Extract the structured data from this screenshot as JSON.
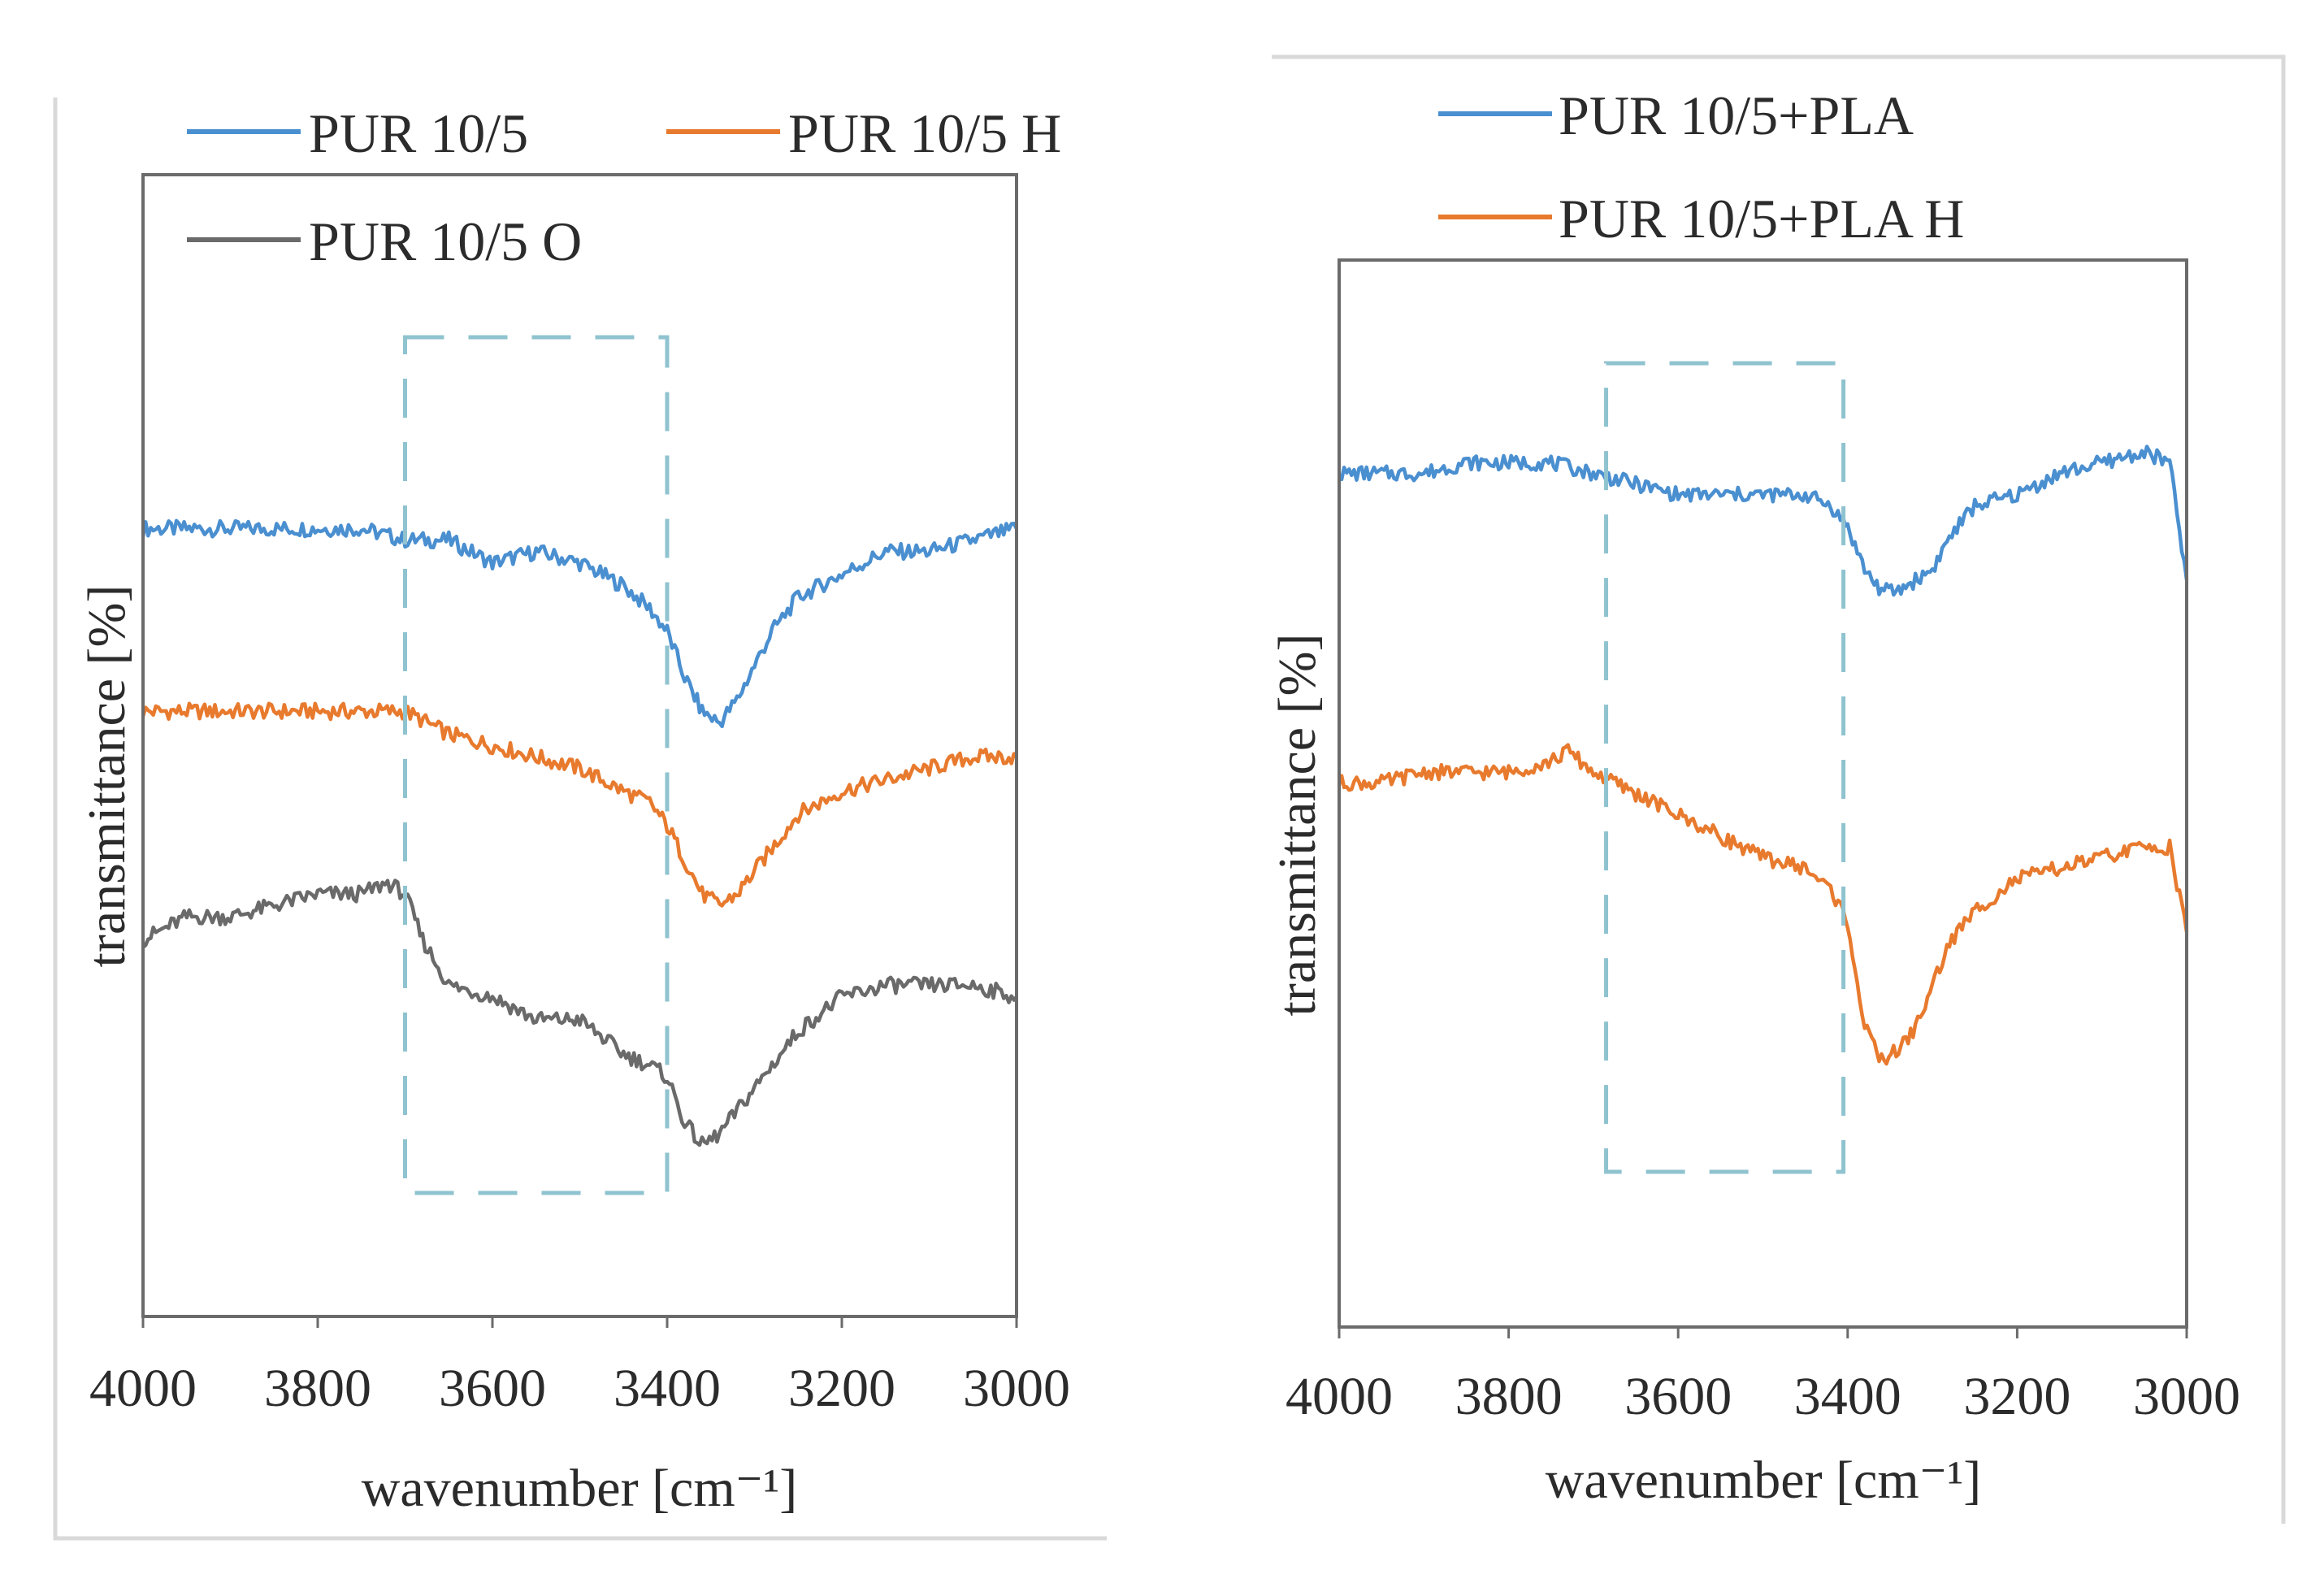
{
  "chart_data": [
    {
      "type": "line",
      "title": "",
      "xlabel": "wavenumber [cm⁻¹]",
      "ylabel": "transmittance [%]",
      "xlim": [
        4000,
        3000
      ],
      "x_reversed": true,
      "ylim": [
        0,
        1
      ],
      "y_ticks_shown": false,
      "grid": false,
      "legend_position": "top",
      "x_tick_labels": [
        "4000",
        "3800",
        "3600",
        "3400",
        "3200",
        "3000"
      ],
      "highlight_box": {
        "x_range": [
          3700,
          3400
        ],
        "style": "dashed",
        "color": "#8fc3cf"
      },
      "series": [
        {
          "name": "PUR 10/5",
          "color": "#4a8fd0",
          "x": [
            4000,
            3950,
            3900,
            3850,
            3800,
            3750,
            3700,
            3650,
            3600,
            3550,
            3500,
            3450,
            3420,
            3400,
            3380,
            3360,
            3340,
            3320,
            3300,
            3280,
            3250,
            3200,
            3150,
            3100,
            3050,
            3000
          ],
          "y": [
            0.69,
            0.69,
            0.69,
            0.69,
            0.69,
            0.69,
            0.68,
            0.68,
            0.66,
            0.67,
            0.66,
            0.64,
            0.62,
            0.6,
            0.56,
            0.53,
            0.52,
            0.54,
            0.57,
            0.6,
            0.63,
            0.65,
            0.67,
            0.67,
            0.68,
            0.69
          ]
        },
        {
          "name": "PUR 10/5 H",
          "color": "#e87a2e",
          "x": [
            4000,
            3950,
            3900,
            3850,
            3800,
            3750,
            3700,
            3650,
            3600,
            3550,
            3500,
            3450,
            3420,
            3400,
            3380,
            3360,
            3340,
            3320,
            3300,
            3280,
            3250,
            3200,
            3150,
            3100,
            3050,
            3000
          ],
          "y": [
            0.53,
            0.53,
            0.53,
            0.53,
            0.53,
            0.53,
            0.53,
            0.51,
            0.5,
            0.49,
            0.48,
            0.46,
            0.45,
            0.43,
            0.4,
            0.37,
            0.36,
            0.37,
            0.39,
            0.41,
            0.44,
            0.46,
            0.47,
            0.48,
            0.49,
            0.49
          ]
        },
        {
          "name": "PUR 10/5 O",
          "color": "#6a6a6a",
          "x": [
            4000,
            3950,
            3900,
            3850,
            3800,
            3750,
            3720,
            3700,
            3680,
            3650,
            3600,
            3550,
            3500,
            3450,
            3420,
            3400,
            3380,
            3360,
            3340,
            3320,
            3300,
            3280,
            3250,
            3200,
            3150,
            3100,
            3050,
            3000
          ],
          "y": [
            0.33,
            0.35,
            0.35,
            0.36,
            0.37,
            0.37,
            0.38,
            0.37,
            0.33,
            0.29,
            0.28,
            0.26,
            0.26,
            0.23,
            0.22,
            0.21,
            0.17,
            0.15,
            0.16,
            0.18,
            0.2,
            0.22,
            0.25,
            0.28,
            0.29,
            0.29,
            0.29,
            0.28
          ]
        }
      ]
    },
    {
      "type": "line",
      "title": "",
      "xlabel": "wavenumber [cm⁻¹]",
      "ylabel": "transmittance [%]",
      "xlim": [
        4000,
        3000
      ],
      "x_reversed": true,
      "ylim": [
        0,
        1
      ],
      "y_ticks_shown": false,
      "grid": false,
      "legend_position": "top",
      "x_tick_labels": [
        "4000",
        "3800",
        "3600",
        "3400",
        "3200",
        "3000"
      ],
      "highlight_box": {
        "x_range": [
          3685,
          3405
        ],
        "style": "dashed",
        "color": "#8fc3cf"
      },
      "series": [
        {
          "name": "PUR 10/5+PLA",
          "color": "#4a8fd0",
          "x": [
            4000,
            3950,
            3900,
            3850,
            3800,
            3750,
            3700,
            3650,
            3600,
            3550,
            3500,
            3450,
            3420,
            3400,
            3380,
            3360,
            3340,
            3320,
            3300,
            3280,
            3250,
            3200,
            3150,
            3100,
            3050,
            3020,
            3000
          ],
          "y": [
            0.8,
            0.8,
            0.8,
            0.81,
            0.81,
            0.81,
            0.8,
            0.79,
            0.78,
            0.78,
            0.78,
            0.78,
            0.77,
            0.75,
            0.71,
            0.69,
            0.69,
            0.7,
            0.71,
            0.74,
            0.77,
            0.78,
            0.8,
            0.81,
            0.82,
            0.81,
            0.7
          ]
        },
        {
          "name": "PUR 10/5+PLA H",
          "color": "#e87a2e",
          "x": [
            4000,
            3950,
            3900,
            3850,
            3800,
            3750,
            3730,
            3700,
            3650,
            3600,
            3550,
            3500,
            3450,
            3420,
            3400,
            3380,
            3360,
            3340,
            3320,
            3300,
            3280,
            3250,
            3200,
            3150,
            3100,
            3050,
            3020,
            3000
          ],
          "y": [
            0.51,
            0.51,
            0.52,
            0.52,
            0.52,
            0.53,
            0.54,
            0.52,
            0.5,
            0.48,
            0.46,
            0.44,
            0.43,
            0.41,
            0.38,
            0.28,
            0.25,
            0.26,
            0.28,
            0.32,
            0.36,
            0.39,
            0.42,
            0.43,
            0.44,
            0.45,
            0.45,
            0.37
          ]
        }
      ]
    }
  ]
}
